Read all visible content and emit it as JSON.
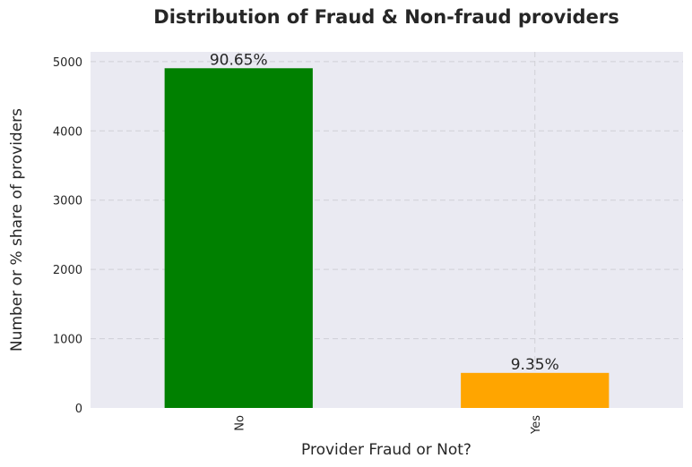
{
  "chart_data": {
    "type": "bar",
    "title": "Distribution of Fraud & Non-fraud providers",
    "xlabel": "Provider Fraud or Not?",
    "ylabel": "Number or % share of providers",
    "categories": [
      "No",
      "Yes"
    ],
    "values": [
      4904,
      506
    ],
    "data_labels": [
      "90.65%",
      "9.35%"
    ],
    "colors": [
      "#008000",
      "#FFA500"
    ],
    "yticks": [
      0,
      1000,
      2000,
      3000,
      4000,
      5000
    ],
    "ylim": [
      0,
      5140
    ],
    "grid": true,
    "background": "#EAEAF2"
  }
}
